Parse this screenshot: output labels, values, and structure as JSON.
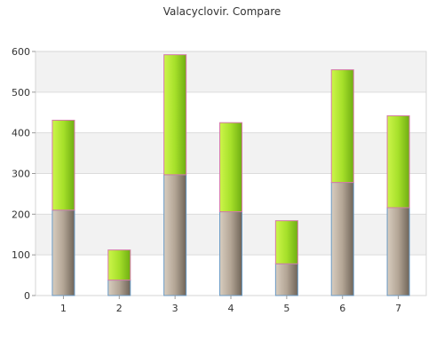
{
  "chart_data": {
    "type": "bar",
    "stacked": true,
    "title": "Valacyclovir. Compare",
    "xlabel": "",
    "ylabel": "",
    "categories": [
      "1",
      "2",
      "3",
      "4",
      "5",
      "6",
      "7"
    ],
    "y_ticks": [
      "0",
      "100",
      "200",
      "300",
      "400",
      "500",
      "600"
    ],
    "ylim": [
      0,
      600
    ],
    "grid": true,
    "legend": "none",
    "series": [
      {
        "values": [
          210,
          38,
          297,
          206,
          78,
          278,
          216
        ],
        "color": "#a89a8a",
        "edge": "#6a9ac4"
      },
      {
        "values": [
          221,
          74,
          295,
          219,
          106,
          277,
          226
        ],
        "color": "#9edc2a",
        "edge": "#d47aa8"
      }
    ]
  }
}
